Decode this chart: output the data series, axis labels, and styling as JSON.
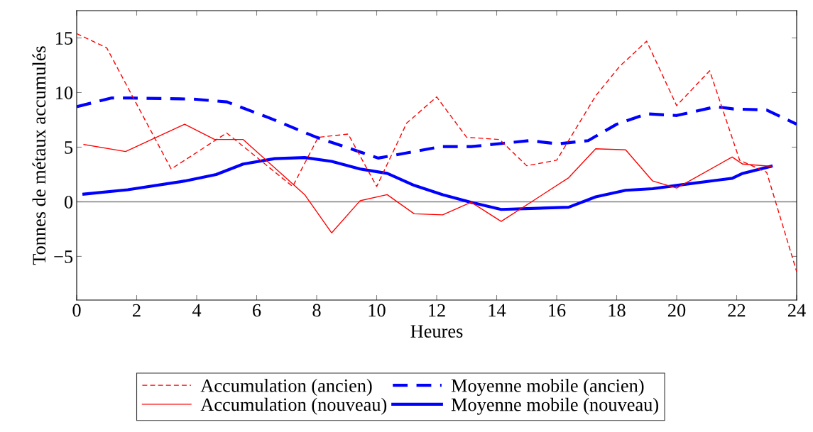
{
  "chart_data": {
    "type": "line",
    "xlabel": "Heures",
    "ylabel": "Tonnes de métaux accumulés",
    "xlim": [
      0,
      24
    ],
    "ylim": [
      -9,
      17.5
    ],
    "xticks": [
      0,
      2,
      4,
      6,
      8,
      10,
      12,
      14,
      16,
      18,
      20,
      22,
      24
    ],
    "yticks": [
      {
        "value": -5,
        "label": "−5"
      },
      0,
      5,
      10,
      15
    ],
    "grid": false,
    "legend": "bottom",
    "marker": "none",
    "ref_lines": [
      {
        "axis": "y",
        "value": 0,
        "label": null,
        "color": "#808080",
        "line_style": "solid"
      }
    ],
    "series": [
      {
        "name": "Accumulation (ancien)",
        "color": "#ff0000",
        "line_style": "dashed",
        "x": [
          0,
          1.0,
          3.15,
          5.0,
          7.2,
          8.05,
          9.05,
          10.0,
          11.0,
          12.0,
          13.0,
          14.1,
          15.0,
          16.0,
          17.3,
          18.1,
          19.0,
          20.0,
          21.1,
          22.1,
          23.0,
          24.0
        ],
        "values": [
          15.4,
          14.1,
          3.0,
          6.3,
          1.4,
          5.9,
          6.2,
          1.4,
          7.2,
          9.6,
          5.9,
          5.7,
          3.3,
          3.8,
          9.7,
          12.4,
          14.7,
          8.8,
          12.0,
          3.8,
          2.7,
          -6.4
        ]
      },
      {
        "name": "Accumulation (nouveau)",
        "color": "#ff0000",
        "line_style": "solid",
        "x": [
          0.24,
          1.63,
          3.6,
          4.6,
          5.55,
          7.6,
          8.5,
          9.45,
          10.35,
          11.25,
          12.2,
          13.15,
          14.15,
          16.4,
          17.3,
          18.3,
          19.2,
          20.0,
          21.85,
          22.2,
          23.15
        ],
        "values": [
          5.25,
          4.6,
          7.1,
          5.7,
          5.7,
          0.65,
          -2.85,
          0.1,
          0.65,
          -1.1,
          -1.2,
          -0.05,
          -1.8,
          2.2,
          4.85,
          4.75,
          1.9,
          1.25,
          4.1,
          3.45,
          3.25
        ]
      },
      {
        "name": "Moyenne mobile (ancien)",
        "color": "#0000ff",
        "line_style": "dashed",
        "x": [
          0,
          1.15,
          1.8,
          3.9,
          5.0,
          6.4,
          8.0,
          10.05,
          12.15,
          13.15,
          15.1,
          16.05,
          17.05,
          18.0,
          19.0,
          20.0,
          21.3,
          21.9,
          23.0,
          24.0
        ],
        "values": [
          8.7,
          9.5,
          9.5,
          9.4,
          9.15,
          7.7,
          5.9,
          4.0,
          5.05,
          5.05,
          5.6,
          5.3,
          5.6,
          7.1,
          8.05,
          7.9,
          8.7,
          8.5,
          8.4,
          7.1
        ]
      },
      {
        "name": "Moyenne mobile (nouveau)",
        "color": "#0000ff",
        "line_style": "solid",
        "x": [
          0.24,
          1.7,
          3.6,
          4.65,
          5.55,
          6.6,
          7.6,
          8.5,
          9.45,
          10.35,
          11.25,
          12.2,
          13.15,
          14.15,
          16.4,
          17.3,
          18.3,
          19.2,
          20.0,
          21.85,
          22.2,
          23.15
        ],
        "values": [
          0.7,
          1.1,
          1.9,
          2.5,
          3.45,
          3.95,
          4.05,
          3.7,
          3.0,
          2.6,
          1.5,
          0.65,
          -0.05,
          -0.7,
          -0.5,
          0.45,
          1.05,
          1.2,
          1.5,
          2.15,
          2.6,
          3.25
        ]
      }
    ]
  }
}
